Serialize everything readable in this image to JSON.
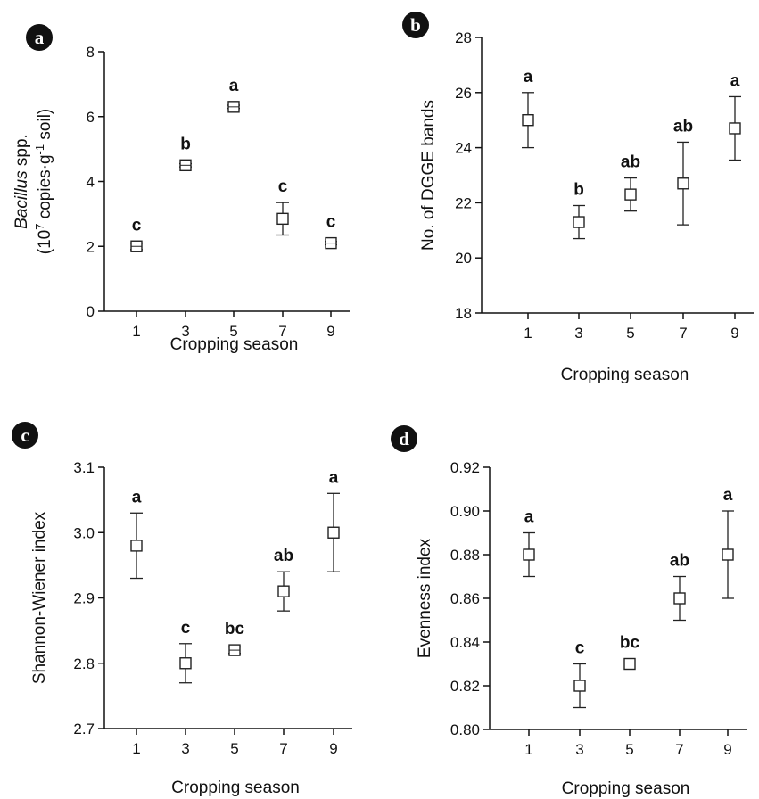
{
  "chart_data": [
    {
      "panel": "a",
      "type": "scatter",
      "xlabel": "Cropping season",
      "ylabel_parts": [
        {
          "text": "Bacillus",
          "style": "italic"
        },
        {
          "text": " spp.",
          "style": "normal"
        }
      ],
      "ylabel_line2_parts": [
        {
          "text": "(10",
          "sup": false
        },
        {
          "text": "7",
          "sup": true
        },
        {
          "text": " copies·g",
          "sup": false
        },
        {
          "text": "-1",
          "sup": true
        },
        {
          "text": " soil)",
          "sup": false
        }
      ],
      "ylim": [
        0,
        8
      ],
      "yticks": [
        "0",
        "2",
        "4",
        "6",
        "8"
      ],
      "ytick_values": [
        0,
        2,
        4,
        6,
        8
      ],
      "categories": [
        "1",
        "3",
        "5",
        "7",
        "9"
      ],
      "points": [
        {
          "x": "1",
          "y": 2.0,
          "err": 0.1,
          "letter": "c"
        },
        {
          "x": "3",
          "y": 4.5,
          "err": 0.05,
          "letter": "b"
        },
        {
          "x": "5",
          "y": 6.3,
          "err": 0.05,
          "letter": "a"
        },
        {
          "x": "7",
          "y": 2.85,
          "err": 0.5,
          "letter": "c"
        },
        {
          "x": "9",
          "y": 2.1,
          "err": 0.05,
          "letter": "c"
        }
      ]
    },
    {
      "panel": "b",
      "type": "scatter",
      "xlabel": "Cropping season",
      "ylabel": "No. of DGGE bands",
      "ylim": [
        18,
        28
      ],
      "yticks": [
        "18",
        "20",
        "22",
        "24",
        "26",
        "28"
      ],
      "ytick_values": [
        18,
        20,
        22,
        24,
        26,
        28
      ],
      "categories": [
        "1",
        "3",
        "5",
        "7",
        "9"
      ],
      "points": [
        {
          "x": "1",
          "y": 25.0,
          "err": 1.0,
          "letter": "a"
        },
        {
          "x": "3",
          "y": 21.3,
          "err": 0.6,
          "letter": "b"
        },
        {
          "x": "5",
          "y": 22.3,
          "err": 0.6,
          "letter": "ab"
        },
        {
          "x": "7",
          "y": 22.7,
          "err": 1.5,
          "letter": "ab"
        },
        {
          "x": "9",
          "y": 24.7,
          "err": 1.15,
          "letter": "a"
        }
      ]
    },
    {
      "panel": "c",
      "type": "scatter",
      "xlabel": "Cropping season",
      "ylabel": "Shannon-Wiener index",
      "ylim": [
        2.7,
        3.1
      ],
      "yticks": [
        "2.7",
        "2.8",
        "2.9",
        "3.0",
        "3.1"
      ],
      "ytick_values": [
        2.7,
        2.8,
        2.9,
        3.0,
        3.1
      ],
      "categories": [
        "1",
        "3",
        "5",
        "7",
        "9"
      ],
      "points": [
        {
          "x": "1",
          "y": 2.98,
          "err": 0.05,
          "letter": "a"
        },
        {
          "x": "3",
          "y": 2.8,
          "err": 0.03,
          "letter": "c"
        },
        {
          "x": "5",
          "y": 2.82,
          "err": 0.005,
          "letter": "bc"
        },
        {
          "x": "7",
          "y": 2.91,
          "err": 0.03,
          "letter": "ab"
        },
        {
          "x": "9",
          "y": 3.0,
          "err": 0.06,
          "letter": "a"
        }
      ]
    },
    {
      "panel": "d",
      "type": "scatter",
      "xlabel": "Cropping season",
      "ylabel": "Evenness index",
      "ylim": [
        0.8,
        0.92
      ],
      "yticks": [
        "0.80",
        "0.82",
        "0.84",
        "0.86",
        "0.88",
        "0.90",
        "0.92"
      ],
      "ytick_values": [
        0.8,
        0.82,
        0.84,
        0.86,
        0.88,
        0.9,
        0.92
      ],
      "categories": [
        "1",
        "3",
        "5",
        "7",
        "9"
      ],
      "points": [
        {
          "x": "1",
          "y": 0.88,
          "err": 0.01,
          "letter": "a"
        },
        {
          "x": "3",
          "y": 0.82,
          "err": 0.01,
          "letter": "c"
        },
        {
          "x": "5",
          "y": 0.83,
          "err": 0.0,
          "letter": "bc"
        },
        {
          "x": "7",
          "y": 0.86,
          "err": 0.01,
          "letter": "ab"
        },
        {
          "x": "9",
          "y": 0.88,
          "err": 0.02,
          "letter": "a"
        }
      ]
    }
  ]
}
